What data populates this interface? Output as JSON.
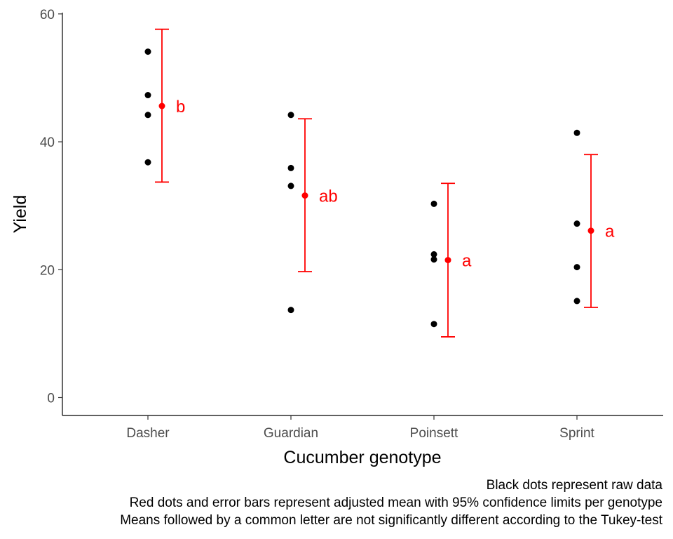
{
  "chart_data": {
    "type": "scatter",
    "xlabel": "Cucumber genotype",
    "ylabel": "Yield",
    "categories": [
      "Dasher",
      "Guardian",
      "Poinsett",
      "Sprint"
    ],
    "ylim": [
      -2.8,
      60.2
    ],
    "yticks": [
      0,
      20,
      40,
      60
    ],
    "grid": false,
    "raw_data": [
      {
        "genotype": "Dasher",
        "values": [
          54.1,
          47.3,
          44.2,
          36.8
        ]
      },
      {
        "genotype": "Guardian",
        "values": [
          44.2,
          35.9,
          33.1,
          13.7
        ]
      },
      {
        "genotype": "Poinsett",
        "values": [
          30.3,
          22.4,
          21.6,
          11.5
        ]
      },
      {
        "genotype": "Sprint",
        "values": [
          41.4,
          27.2,
          20.4,
          15.1
        ]
      }
    ],
    "adjusted_means": [
      {
        "genotype": "Dasher",
        "mean": 45.6,
        "lower": 33.7,
        "upper": 57.6,
        "letter": "b"
      },
      {
        "genotype": "Guardian",
        "mean": 31.6,
        "lower": 19.7,
        "upper": 43.6,
        "letter": "ab"
      },
      {
        "genotype": "Poinsett",
        "mean": 21.5,
        "lower": 9.5,
        "upper": 33.5,
        "letter": "a"
      },
      {
        "genotype": "Sprint",
        "mean": 26.1,
        "lower": 14.1,
        "upper": 38.0,
        "letter": "a"
      }
    ],
    "colors": {
      "raw": "#000000",
      "mean": "#ff0000"
    },
    "caption": [
      "Black dots represent raw data",
      "Red dots and error bars represent adjusted mean with 95% confidence limits per genotype",
      "Means followed by a common letter are not significantly different according to the Tukey-test"
    ]
  }
}
